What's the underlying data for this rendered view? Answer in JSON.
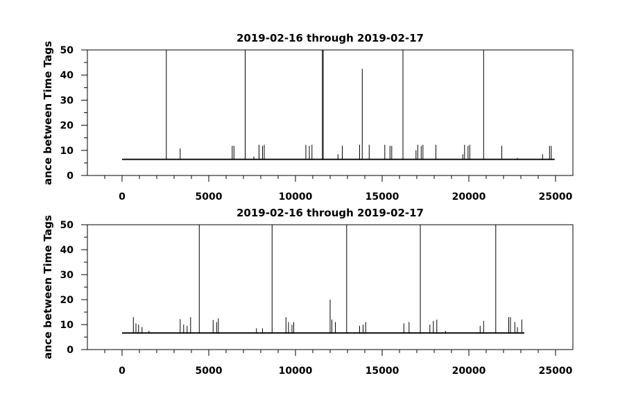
{
  "chart_data": [
    {
      "type": "line",
      "title": "2019-02-16 through 2019-02-17",
      "ylabel": "ance between Time Tags",
      "xlabel": "",
      "xlim": [
        -2000,
        26000
      ],
      "ylim": [
        0,
        50
      ],
      "x_ticks": [
        0,
        5000,
        10000,
        15000,
        20000,
        25000
      ],
      "x_minor_ticks": [
        -1000,
        1000,
        2000,
        3000,
        4000,
        6000,
        7000,
        8000,
        9000,
        11000,
        12000,
        13000,
        14000,
        16000,
        17000,
        18000,
        19000,
        21000,
        22000,
        23000,
        24000
      ],
      "y_ticks": [
        0,
        10,
        20,
        30,
        40,
        50
      ],
      "y_minor_ticks": [
        5,
        15,
        25,
        35,
        45
      ],
      "grid": false,
      "series": [
        {
          "baseline": 6.3,
          "x_start": 0,
          "x_end": 24950,
          "spikes": [
            [
              2550,
              50
            ],
            [
              3350,
              10.8
            ],
            [
              6350,
              11.8
            ],
            [
              6450,
              11.8
            ],
            [
              7100,
              50
            ],
            [
              7600,
              7.5
            ],
            [
              7900,
              12.2
            ],
            [
              8100,
              11.8
            ],
            [
              8200,
              12.2
            ],
            [
              10600,
              12.2
            ],
            [
              10800,
              11.8
            ],
            [
              10950,
              12.2
            ],
            [
              11550,
              50
            ],
            [
              11600,
              50
            ],
            [
              12450,
              8.5
            ],
            [
              12700,
              11.8
            ],
            [
              13700,
              12.2
            ],
            [
              13850,
              42.5
            ],
            [
              14250,
              12.2
            ],
            [
              15150,
              12.2
            ],
            [
              15450,
              11.8
            ],
            [
              15550,
              11.8
            ],
            [
              16200,
              50
            ],
            [
              16950,
              10.0
            ],
            [
              17050,
              12.2
            ],
            [
              17250,
              11.8
            ],
            [
              17350,
              12.2
            ],
            [
              18100,
              12.2
            ],
            [
              19650,
              8.5
            ],
            [
              19750,
              12.2
            ],
            [
              19950,
              11.8
            ],
            [
              20050,
              12.2
            ],
            [
              20850,
              50
            ],
            [
              21900,
              11.8
            ],
            [
              22800,
              7.0
            ],
            [
              24250,
              8.5
            ],
            [
              24650,
              11.8
            ],
            [
              24750,
              11.8
            ]
          ]
        }
      ]
    },
    {
      "type": "line",
      "title": "2019-02-16 through 2019-02-17",
      "ylabel": "ance between Time Tags",
      "xlabel": "",
      "xlim": [
        -2000,
        26000
      ],
      "ylim": [
        0,
        50
      ],
      "x_ticks": [
        0,
        5000,
        10000,
        15000,
        20000,
        25000
      ],
      "x_minor_ticks": [
        -1000,
        1000,
        2000,
        3000,
        4000,
        6000,
        7000,
        8000,
        9000,
        11000,
        12000,
        13000,
        14000,
        16000,
        17000,
        18000,
        19000,
        21000,
        22000,
        23000,
        24000
      ],
      "y_ticks": [
        0,
        10,
        20,
        30,
        40,
        50
      ],
      "y_minor_ticks": [
        5,
        15,
        25,
        35,
        45
      ],
      "grid": false,
      "series": [
        {
          "baseline": 6.5,
          "x_start": 0,
          "x_end": 23200,
          "spikes": [
            [
              650,
              13.0
            ],
            [
              800,
              10.5
            ],
            [
              950,
              10.0
            ],
            [
              1150,
              9.0
            ],
            [
              1550,
              7.5
            ],
            [
              3350,
              12.2
            ],
            [
              3550,
              10.0
            ],
            [
              3750,
              9.5
            ],
            [
              3950,
              13.0
            ],
            [
              4450,
              50
            ],
            [
              5250,
              11.8
            ],
            [
              5450,
              11.0
            ],
            [
              5550,
              12.5
            ],
            [
              7750,
              8.5
            ],
            [
              8100,
              8.5
            ],
            [
              8650,
              50
            ],
            [
              9450,
              13.0
            ],
            [
              9600,
              11.0
            ],
            [
              9800,
              10.0
            ],
            [
              9900,
              11.0
            ],
            [
              12000,
              20.0
            ],
            [
              12100,
              12.0
            ],
            [
              12300,
              11.0
            ],
            [
              12950,
              50
            ],
            [
              13700,
              9.5
            ],
            [
              13900,
              10.0
            ],
            [
              14050,
              11.0
            ],
            [
              16250,
              10.5
            ],
            [
              16550,
              11.0
            ],
            [
              17200,
              50
            ],
            [
              17750,
              10.0
            ],
            [
              17950,
              11.5
            ],
            [
              18150,
              12.0
            ],
            [
              18650,
              7.5
            ],
            [
              20650,
              9.5
            ],
            [
              20850,
              11.5
            ],
            [
              21550,
              50
            ],
            [
              22300,
              13.0
            ],
            [
              22400,
              13.0
            ],
            [
              22650,
              11.0
            ],
            [
              22800,
              9.0
            ],
            [
              23050,
              12.0
            ]
          ]
        }
      ]
    }
  ]
}
